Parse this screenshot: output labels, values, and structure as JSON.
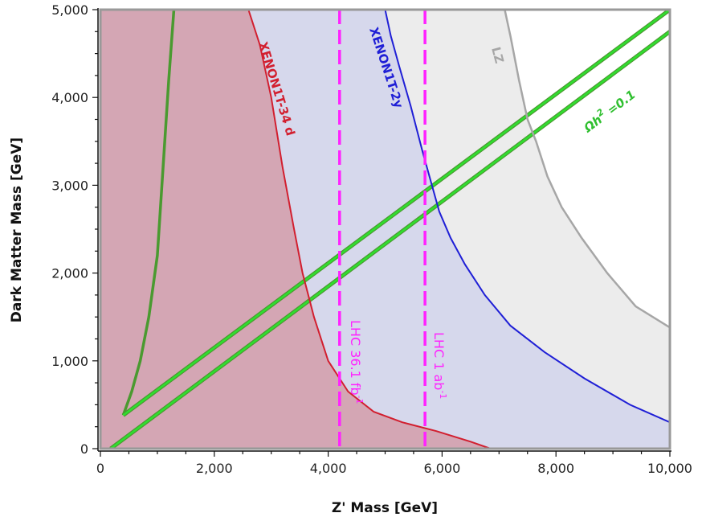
{
  "chart_data": {
    "type": "line",
    "title": "",
    "xlabel": "Z' Mass [GeV]",
    "ylabel": "Dark Matter Mass [GeV]",
    "xlim": [
      0,
      10000
    ],
    "ylim": [
      0,
      5000
    ],
    "grid": false,
    "x_ticks": [
      0,
      2000,
      4000,
      6000,
      8000,
      10000
    ],
    "x_tick_labels": [
      "0",
      "2,000",
      "4,000",
      "6,000",
      "8,000",
      "10,000"
    ],
    "y_ticks": [
      0,
      1000,
      2000,
      3000,
      4000,
      5000
    ],
    "y_tick_labels": [
      "0",
      "1,000",
      "2,000",
      "3,000",
      "4,000",
      "5,000"
    ],
    "colors": {
      "lz": "#a6a6a6",
      "lz_fill": "#ececec",
      "xenon2y": "#1f1fd6",
      "xenon2y_fill": "#d6d8ec",
      "xenon34": "#d21f2f",
      "xenon34_fill": "#d4a6b4",
      "relic_line": "#2fe02f",
      "relic_outline": "#4a9a30",
      "lhc": "#ff22ff"
    },
    "exclusion_curves": [
      {
        "key": "lz",
        "name": "LZ",
        "points": [
          [
            7100,
            5000
          ],
          [
            7200,
            4700
          ],
          [
            7350,
            4200
          ],
          [
            7500,
            3750
          ],
          [
            7650,
            3500
          ],
          [
            7850,
            3100
          ],
          [
            8100,
            2750
          ],
          [
            8450,
            2400
          ],
          [
            8900,
            2000
          ],
          [
            9400,
            1620
          ],
          [
            10000,
            1380
          ]
        ]
      },
      {
        "key": "xenon2y",
        "name": "XENON1T-2y",
        "points": [
          [
            5000,
            5000
          ],
          [
            5100,
            4700
          ],
          [
            5250,
            4350
          ],
          [
            5450,
            3900
          ],
          [
            5650,
            3400
          ],
          [
            5800,
            3050
          ],
          [
            5950,
            2700
          ],
          [
            6150,
            2400
          ],
          [
            6400,
            2100
          ],
          [
            6750,
            1750
          ],
          [
            7200,
            1400
          ],
          [
            7800,
            1100
          ],
          [
            8500,
            800
          ],
          [
            9300,
            500
          ],
          [
            10000,
            300
          ]
        ]
      },
      {
        "key": "xenon34",
        "name": "XENON1T-34 d",
        "points": [
          [
            2600,
            5000
          ],
          [
            2800,
            4600
          ],
          [
            3000,
            4000
          ],
          [
            3200,
            3200
          ],
          [
            3400,
            2500
          ],
          [
            3550,
            2000
          ],
          [
            3750,
            1500
          ],
          [
            4000,
            1000
          ],
          [
            4350,
            650
          ],
          [
            4800,
            420
          ],
          [
            5300,
            300
          ],
          [
            5900,
            200
          ],
          [
            6500,
            80
          ],
          [
            6850,
            0
          ]
        ]
      }
    ],
    "relic_density": {
      "name": "Ωh² =0.1",
      "name_plain": "Ωh",
      "name_sup": "2",
      "name_rest": " =0.1",
      "upper_band": [
        [
          400,
          380
        ],
        [
          10000,
          5000
        ]
      ],
      "lower_band": [
        [
          180,
          0
        ],
        [
          10000,
          4750
        ]
      ],
      "low_mass_branch": [
        [
          1290,
          5000
        ],
        [
          1200,
          4200
        ],
        [
          1100,
          3200
        ],
        [
          1000,
          2200
        ],
        [
          850,
          1500
        ],
        [
          700,
          1000
        ],
        [
          550,
          650
        ],
        [
          400,
          380
        ]
      ]
    },
    "lhc_limits": [
      {
        "name": "LHC 36.1 fb",
        "sup": "-1",
        "x": 4200
      },
      {
        "name": "LHC 1 ab",
        "sup": "-1",
        "x": 5700
      }
    ]
  }
}
